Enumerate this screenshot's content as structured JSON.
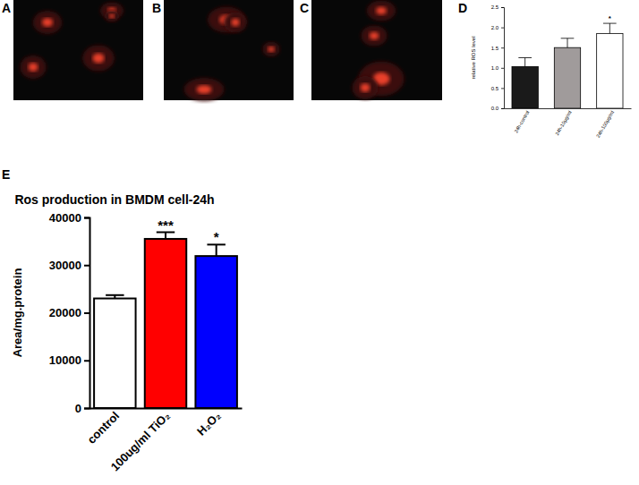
{
  "panel_labels": [
    "A",
    "B",
    "C",
    "D",
    "E"
  ],
  "chart_data": [
    {
      "type": "bar",
      "ylabel": "relative ROS level",
      "categories": [
        "24h-control",
        "24h-10μg/ml",
        "24h-100μg/ml"
      ],
      "values": [
        1.03,
        1.5,
        1.85
      ],
      "errors": [
        0.22,
        0.23,
        0.25
      ],
      "significance": [
        null,
        null,
        "*"
      ],
      "colors": [
        "#1a1a1a",
        "#a09b9b",
        "#ffffff"
      ],
      "ylim": [
        0,
        2.5
      ],
      "yticks": [
        {
          "value": 0,
          "label": "0.0"
        },
        {
          "value": 0.5,
          "label": "0.5"
        },
        {
          "value": 1,
          "label": "1.0"
        },
        {
          "value": 1.5,
          "label": "1.5"
        },
        {
          "value": 2,
          "label": "2.0"
        },
        {
          "value": 2.5,
          "label": "2.5"
        }
      ]
    },
    {
      "type": "bar",
      "title": "Ros production in BMDM cell-24h",
      "ylabel": "Area/mg.protein",
      "categories": [
        "control",
        "100ug/ml TiO₂",
        "H₂O₂"
      ],
      "values": [
        23000,
        35500,
        31900
      ],
      "errors": [
        700,
        1400,
        2400
      ],
      "significance": [
        null,
        "***",
        "*"
      ],
      "colors": [
        "#ffffff",
        "#ff0000",
        "#0000ff"
      ],
      "ylim": [
        0,
        40000
      ],
      "yticks": [
        0,
        10000,
        20000,
        30000,
        40000
      ]
    }
  ]
}
